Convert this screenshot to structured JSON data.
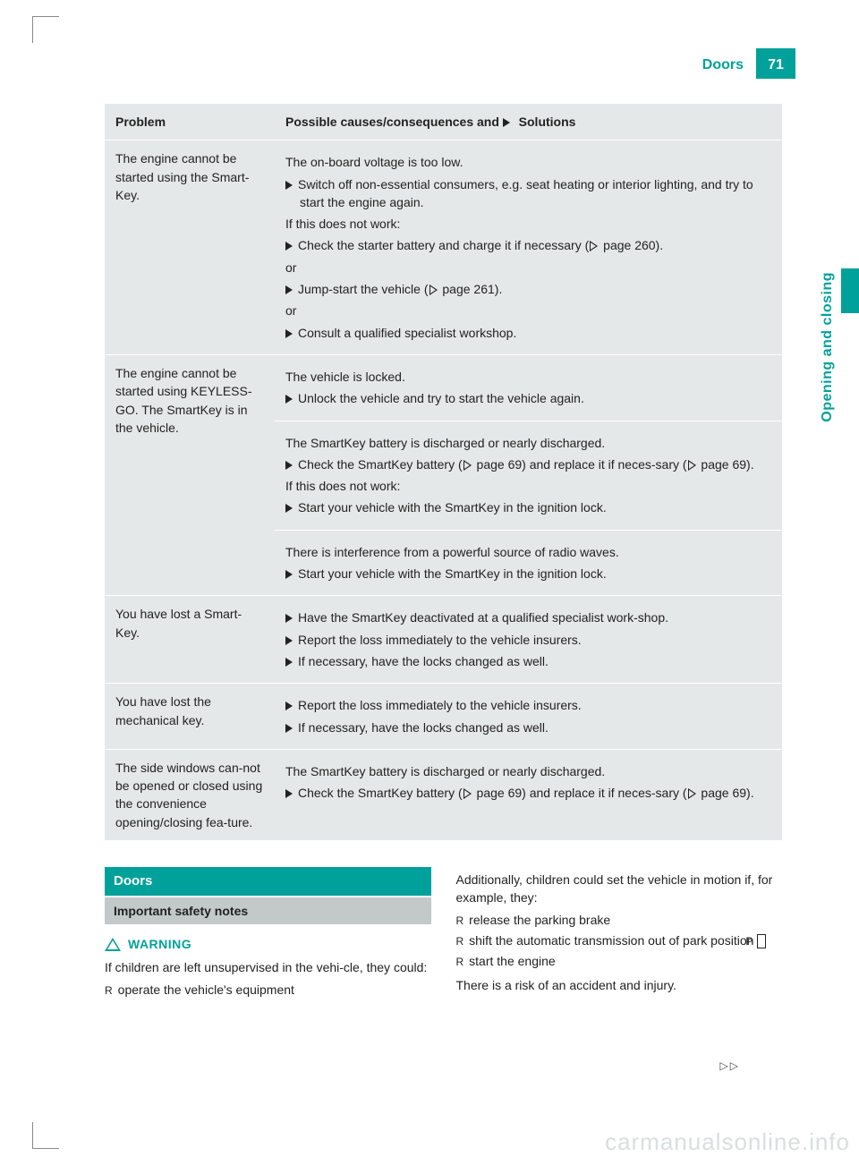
{
  "colors": {
    "teal": "#00a19a",
    "grey_bg": "#e5e8e8",
    "grey_bar": "#c3c9c9",
    "text": "#222222",
    "watermark": "#d9dede"
  },
  "header": {
    "title": "Doors",
    "page_number": "71"
  },
  "side_tab": "Opening and closing",
  "table": {
    "headers": {
      "problem": "Problem",
      "solutions_prefix": "Possible causes/consequences and ",
      "solutions_suffix": " Solutions"
    },
    "rows": [
      {
        "problem": "The engine cannot be started using the Smart-Key.",
        "cells": [
          {
            "lines": [
              {
                "t": "plain",
                "text": "The on-board voltage is too low."
              },
              {
                "t": "action",
                "text": "Switch off non-essential consumers, e.g. seat heating or interior lighting, and try to start the engine again."
              },
              {
                "t": "plain",
                "text": "If this does not work:"
              },
              {
                "t": "action",
                "text": "Check the starter battery and charge it if necessary (",
                "ref": " page 260).",
                "refmid": true
              },
              {
                "t": "plain",
                "text": "or"
              },
              {
                "t": "action",
                "text": "Jump-start the vehicle (",
                "ref": " page 261).",
                "refmid": true
              },
              {
                "t": "plain",
                "text": "or"
              },
              {
                "t": "action",
                "text": "Consult a qualified specialist workshop."
              }
            ]
          }
        ]
      },
      {
        "problem": "The engine cannot be started using KEYLESS-GO. The SmartKey is in the vehicle.",
        "cells": [
          {
            "lines": [
              {
                "t": "plain",
                "text": "The vehicle is locked."
              },
              {
                "t": "action",
                "text": "Unlock the vehicle and try to start the vehicle again."
              }
            ]
          },
          {
            "lines": [
              {
                "t": "plain",
                "text": "The SmartKey battery is discharged or nearly discharged."
              },
              {
                "t": "action",
                "text": "Check the SmartKey battery (",
                "ref": " page 69) and replace it if neces-sary (",
                "ref2": " page 69).",
                "refmid": true
              },
              {
                "t": "plain",
                "text": "If this does not work:"
              },
              {
                "t": "action",
                "text": "Start your vehicle with the SmartKey in the ignition lock."
              }
            ]
          },
          {
            "lines": [
              {
                "t": "plain",
                "text": "There is interference from a powerful source of radio waves."
              },
              {
                "t": "action",
                "text": "Start your vehicle with the SmartKey in the ignition lock."
              }
            ]
          }
        ]
      },
      {
        "problem": "You have lost a Smart-Key.",
        "cells": [
          {
            "lines": [
              {
                "t": "action",
                "text": "Have the SmartKey deactivated at a qualified specialist work-shop."
              },
              {
                "t": "action",
                "text": "Report the loss immediately to the vehicle insurers."
              },
              {
                "t": "action",
                "text": "If necessary, have the locks changed as well."
              }
            ]
          }
        ]
      },
      {
        "problem": "You have lost the mechanical key.",
        "cells": [
          {
            "lines": [
              {
                "t": "action",
                "text": "Report the loss immediately to the vehicle insurers."
              },
              {
                "t": "action",
                "text": "If necessary, have the locks changed as well."
              }
            ]
          }
        ]
      },
      {
        "problem": "The side windows can-not be opened or closed using the convenience opening/closing fea-ture.",
        "cells": [
          {
            "lines": [
              {
                "t": "plain",
                "text": "The SmartKey battery is discharged or nearly discharged."
              },
              {
                "t": "action",
                "text": "Check the SmartKey battery (",
                "ref": " page 69) and replace it if neces-sary (",
                "ref2": " page 69).",
                "refmid": true
              }
            ]
          }
        ]
      }
    ]
  },
  "body": {
    "section_title": "Doors",
    "subsection": "Important safety notes",
    "warning_label": "WARNING",
    "left_intro": "If children are left unsupervised in the vehi-cle, they could:",
    "left_bullets": [
      "operate the vehicle's equipment"
    ],
    "right_intro": "Additionally, children could set the vehicle in motion if, for example, they:",
    "right_bullets": [
      "release the parking brake",
      {
        "pre": "shift the automatic transmission out of park position ",
        "box": "P"
      },
      "start the engine"
    ],
    "right_outro": "There is a risk of an accident and injury."
  },
  "continued": "▷▷",
  "watermark": "carmanualsonline.info"
}
